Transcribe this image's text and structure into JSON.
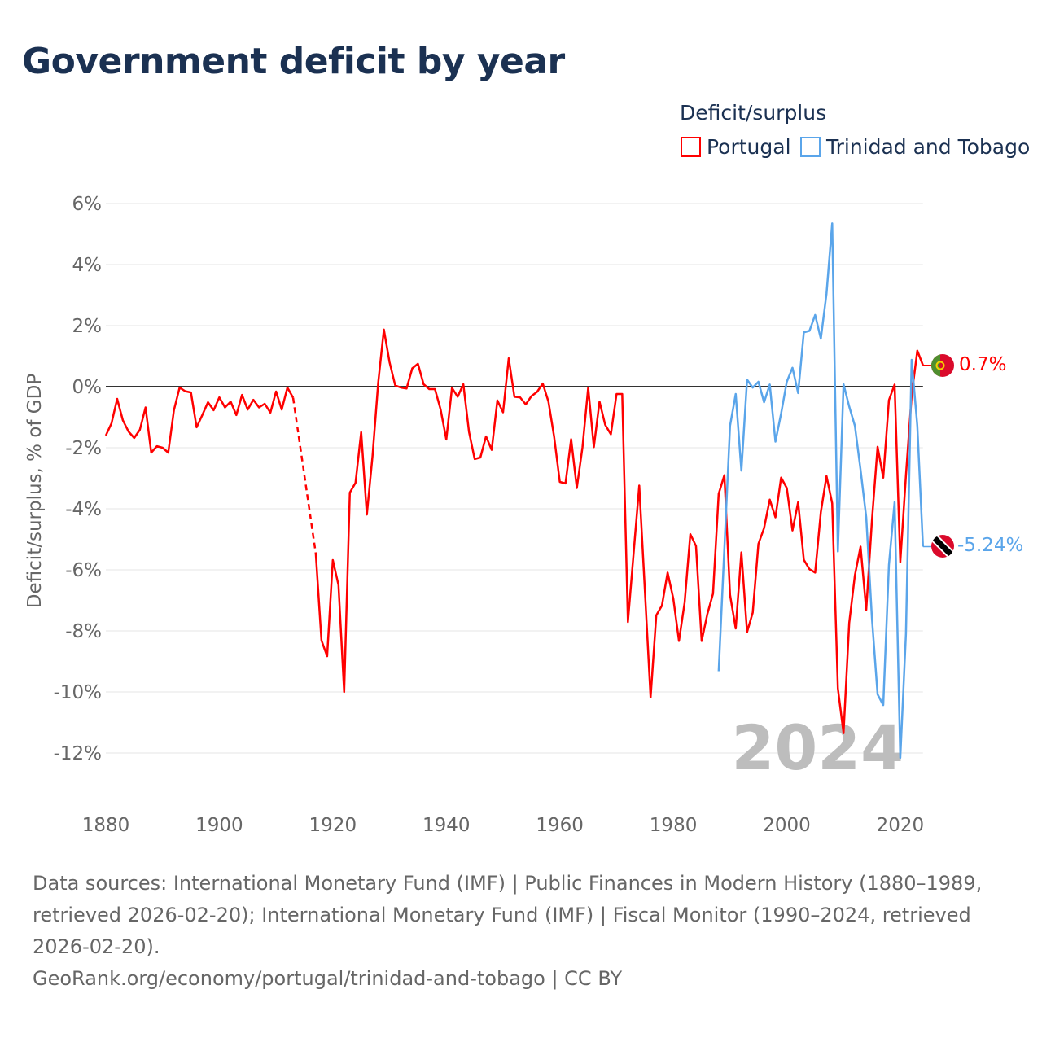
{
  "title": "Government deficit by year",
  "legend": {
    "title": "Deficit/surplus",
    "items": [
      {
        "label": "Portugal",
        "color": "#ff0000"
      },
      {
        "label": "Trinidad and Tobago",
        "color": "#5aa5ea"
      }
    ]
  },
  "year_watermark": "2024",
  "end_labels": {
    "portugal": "0.7%",
    "trinidad": "-5.24%"
  },
  "footer": {
    "sources": "Data sources: International Monetary Fund (IMF) | Public Finances in Modern History (1880–1989, retrieved 2026-02-20); International Monetary Fund (IMF) | Fiscal Monitor (1990–2024, retrieved 2026-02-20).",
    "credit": "GeoRank.org/economy/portugal/trinidad-and-tobago | CC BY"
  },
  "chart_data": {
    "type": "line",
    "title": "Government deficit by year",
    "xlabel": "",
    "ylabel": "Deficit/surplus, % of GDP",
    "xlim": [
      1880,
      2024
    ],
    "ylim": [
      -12,
      6
    ],
    "x_ticks": [
      1880,
      1900,
      1920,
      1940,
      1960,
      1980,
      2000,
      2020
    ],
    "x_tick_labels": [
      "1880",
      "1900",
      "1920",
      "1940",
      "1960",
      "1980",
      "2000",
      "2020"
    ],
    "y_ticks": [
      6,
      4,
      2,
      0,
      -2,
      -4,
      -6,
      -8,
      -10,
      -12
    ],
    "y_tick_labels": [
      "6%",
      "4%",
      "2%",
      "0%",
      "-2%",
      "-4%",
      "-6%",
      "-8%",
      "-10%",
      "-12%"
    ],
    "grid": true,
    "legend_position": "top-right",
    "series": [
      {
        "name": "Portugal",
        "color": "#ff0000",
        "start_year": 1880,
        "values": [
          -1.6,
          -1.2,
          -0.4,
          -1.1,
          -1.47,
          -1.68,
          -1.41,
          -0.68,
          -2.16,
          -1.95,
          -2.0,
          -2.16,
          -0.77,
          -0.03,
          -0.15,
          -0.19,
          -1.33,
          -0.93,
          -0.51,
          -0.77,
          -0.35,
          -0.68,
          -0.49,
          -0.93,
          -0.27,
          -0.75,
          -0.43,
          -0.68,
          -0.56,
          -0.85,
          -0.16,
          -0.75,
          -0.03,
          -0.36,
          null,
          null,
          null,
          -5.47,
          -8.31,
          -8.83,
          -5.68,
          -6.5,
          -10.0,
          -3.47,
          -3.15,
          -1.49,
          -4.19,
          -2.27,
          0.13,
          1.87,
          0.8,
          0.04,
          -0.03,
          -0.06,
          0.6,
          0.75,
          0.08,
          -0.08,
          -0.08,
          -0.75,
          -1.73,
          -0.04,
          -0.33,
          0.08,
          -1.48,
          -2.37,
          -2.32,
          -1.63,
          -2.07,
          -0.45,
          -0.84,
          0.93,
          -0.33,
          -0.35,
          -0.58,
          -0.31,
          -0.17,
          0.1,
          -0.49,
          -1.64,
          -3.12,
          -3.17,
          -1.72,
          -3.32,
          -1.98,
          -0.03,
          -1.98,
          -0.49,
          -1.25,
          -1.56,
          -0.24,
          -0.24,
          -7.71,
          -5.47,
          -3.24,
          -6.7,
          -10.18,
          -7.49,
          -7.17,
          -6.09,
          -6.94,
          -8.33,
          -7.07,
          -4.83,
          -5.22,
          -8.33,
          -7.45,
          -6.78,
          -3.51,
          -2.9,
          -6.82,
          -7.92,
          -5.43,
          -8.04,
          -7.4,
          -5.15,
          -4.63,
          -3.7,
          -4.28,
          -2.98,
          -3.32,
          -4.71,
          -3.78,
          -5.67,
          -5.98,
          -6.09,
          -4.11,
          -2.93,
          -3.82,
          -9.88,
          -11.35,
          -7.74,
          -6.18,
          -5.24,
          -7.31,
          -4.4,
          -1.97,
          -2.98,
          -0.44,
          0.07,
          -5.75,
          -2.9,
          -0.3,
          1.18,
          0.7
        ]
      },
      {
        "name": "Trinidad and Tobago",
        "color": "#5aa5ea",
        "start_year": 1988,
        "values": [
          -9.32,
          -5.3,
          -1.28,
          -0.24,
          -2.75,
          0.23,
          -0.03,
          0.16,
          -0.51,
          0.07,
          -1.8,
          -0.88,
          0.16,
          0.62,
          -0.21,
          1.78,
          1.83,
          2.35,
          1.57,
          3.05,
          5.35,
          -5.4,
          0.08,
          -0.65,
          -1.28,
          -2.72,
          -4.28,
          -7.57,
          -10.08,
          -10.43,
          -5.84,
          -3.78,
          -12.16,
          -8.09,
          0.88,
          -1.28,
          -5.24
        ]
      }
    ]
  }
}
